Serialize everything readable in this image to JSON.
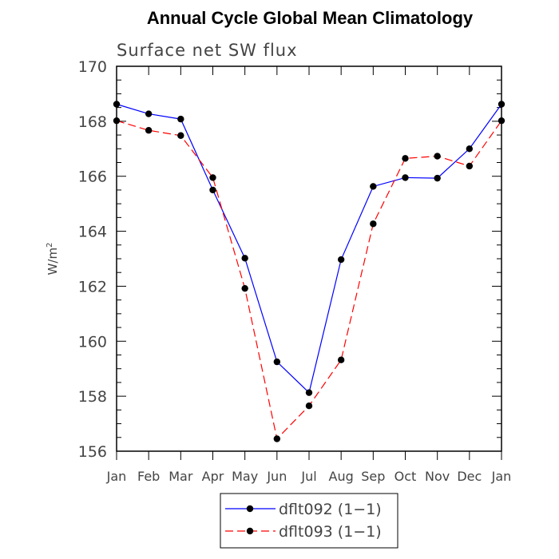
{
  "chart_data": {
    "type": "line",
    "title": "Annual Cycle Global Mean Climatology",
    "subtitle": "Surface net SW flux",
    "xlabel": "",
    "ylabel": "W/m",
    "ylabel_sup": "2",
    "categories": [
      "Jan",
      "Feb",
      "Mar",
      "Apr",
      "May",
      "Jun",
      "Jul",
      "Aug",
      "Sep",
      "Oct",
      "Nov",
      "Dec",
      "Jan"
    ],
    "ylim": [
      156,
      170
    ],
    "yticks": [
      "156",
      "158",
      "160",
      "162",
      "164",
      "166",
      "168",
      "170"
    ],
    "grid": false,
    "legend_position": "bottom",
    "series": [
      {
        "name": "dflt092 (1−1)",
        "color": "#0000ff",
        "dash": "solid",
        "values": [
          168.62,
          168.27,
          168.08,
          165.5,
          163.02,
          159.25,
          158.13,
          162.97,
          165.63,
          165.95,
          165.93,
          167.0,
          168.62
        ]
      },
      {
        "name": "dflt093 (1−1)",
        "color": "#ff0000",
        "dash": "dashed",
        "values": [
          168.02,
          167.67,
          167.48,
          165.95,
          161.92,
          156.45,
          157.65,
          159.32,
          164.27,
          166.65,
          166.73,
          166.37,
          168.02
        ]
      }
    ]
  }
}
